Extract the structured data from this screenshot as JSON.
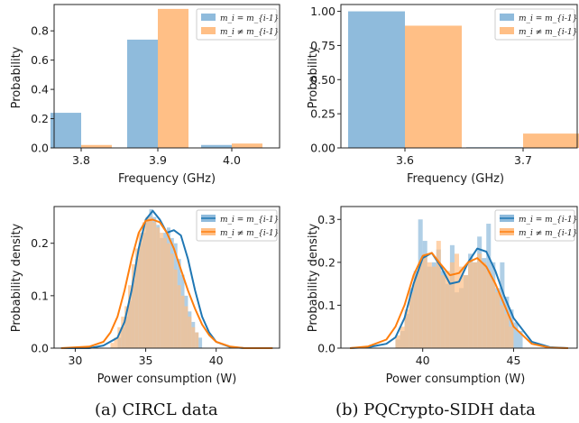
{
  "colors": {
    "blue": "#1f77b4",
    "orange": "#ff7f0e",
    "blue_fill": "#8fbbdc",
    "orange_fill": "#ffbf86",
    "axis": "#222222"
  },
  "captions": {
    "a": "(a) CIRCL data",
    "b": "(b) PQCrypto-SIDH data"
  },
  "chart_data": [
    {
      "id": "freq-circl",
      "type": "bar",
      "xlabel": "Frequency (GHz)",
      "ylabel": "Probability",
      "categories": [
        "3.8",
        "3.9",
        "4.0"
      ],
      "series": [
        {
          "name": "m_i = m_{i-1}",
          "values": [
            0.24,
            0.74,
            0.02
          ]
        },
        {
          "name": "m_i ≠ m_{i-1}",
          "values": [
            0.02,
            0.95,
            0.03
          ]
        }
      ],
      "ylim": [
        0,
        0.98
      ],
      "yticks": [
        0.0,
        0.2,
        0.4,
        0.6,
        0.8
      ],
      "ytick_labels": [
        "0.0",
        "0.2",
        "0.4",
        "0.6",
        "0.8"
      ],
      "legend": "top-right"
    },
    {
      "id": "freq-sidh",
      "type": "bar",
      "xlabel": "Frequency (GHz)",
      "ylabel": "Probability",
      "categories": [
        "3.6",
        "3.7"
      ],
      "series": [
        {
          "name": "m_i = m_{i-1}",
          "values": [
            1.0,
            0.005
          ]
        },
        {
          "name": "m_i ≠ m_{i-1}",
          "values": [
            0.895,
            0.105
          ]
        }
      ],
      "ylim": [
        0,
        1.05
      ],
      "yticks": [
        0.0,
        0.25,
        0.5,
        0.75,
        1.0
      ],
      "ytick_labels": [
        "0.00",
        "0.25",
        "0.50",
        "0.75",
        "1.00"
      ],
      "legend": "top-right"
    },
    {
      "id": "power-circl",
      "type": "area",
      "xlabel": "Power consumption (W)",
      "ylabel": "Probability density",
      "xlim": [
        28.5,
        44.5
      ],
      "ylim": [
        0,
        0.27
      ],
      "xticks": [
        30,
        35,
        40
      ],
      "yticks": [
        0.0,
        0.1,
        0.2
      ],
      "ytick_labels": [
        "0.0",
        "0.1",
        "0.2"
      ],
      "legend": "top-right",
      "series": [
        {
          "name": "m_i = m_{i-1}",
          "curve": {
            "x": [
              29,
              31,
              32,
              33,
              33.5,
              34,
              34.5,
              35,
              35.5,
              36,
              36.5,
              37,
              37.5,
              38,
              38.5,
              39,
              39.5,
              40,
              41,
              42,
              44
            ],
            "y": [
              0,
              0.0,
              0.005,
              0.02,
              0.05,
              0.11,
              0.19,
              0.245,
              0.262,
              0.245,
              0.22,
              0.225,
              0.215,
              0.17,
              0.11,
              0.06,
              0.03,
              0.012,
              0.002,
              0,
              0
            ]
          },
          "hist": {
            "x0": 33.0,
            "bin": 0.25,
            "y": [
              0.02,
              0.04,
              0.06,
              0.09,
              0.13,
              0.17,
              0.2,
              0.22,
              0.25,
              0.265,
              0.25,
              0.235,
              0.21,
              0.22,
              0.23,
              0.21,
              0.2,
              0.17,
              0.14,
              0.1,
              0.07,
              0.05,
              0.03,
              0.02
            ]
          }
        },
        {
          "name": "m_i ≠ m_{i-1}",
          "curve": {
            "x": [
              29,
              31,
              32,
              32.5,
              33,
              33.5,
              34,
              34.5,
              35,
              35.5,
              36,
              36.5,
              37,
              37.5,
              38,
              38.5,
              39,
              39.5,
              40,
              41,
              42,
              44
            ],
            "y": [
              0,
              0.003,
              0.012,
              0.03,
              0.06,
              0.11,
              0.17,
              0.22,
              0.243,
              0.245,
              0.24,
              0.22,
              0.19,
              0.15,
              0.11,
              0.075,
              0.045,
              0.025,
              0.012,
              0.003,
              0,
              0
            ]
          },
          "hist": {
            "x0": 32.5,
            "bin": 0.25,
            "y": [
              0.01,
              0.02,
              0.04,
              0.06,
              0.08,
              0.12,
              0.16,
              0.19,
              0.22,
              0.24,
              0.25,
              0.25,
              0.24,
              0.23,
              0.22,
              0.21,
              0.2,
              0.18,
              0.15,
              0.12,
              0.1,
              0.08,
              0.06,
              0.04,
              0.03
            ]
          }
        }
      ]
    },
    {
      "id": "power-sidh",
      "type": "area",
      "xlabel": "Power consumption (W)",
      "ylabel": "Probability density",
      "xlim": [
        35.5,
        48.5
      ],
      "ylim": [
        0,
        0.33
      ],
      "xticks": [
        40,
        45
      ],
      "yticks": [
        0.0,
        0.1,
        0.2,
        0.3
      ],
      "ytick_labels": [
        "0.0",
        "0.1",
        "0.2",
        "0.3"
      ],
      "legend": "top-right",
      "series": [
        {
          "name": "m_i = m_{i-1}",
          "curve": {
            "x": [
              36,
              37,
              38,
              38.5,
              39,
              39.5,
              40,
              40.5,
              41,
              41.5,
              42,
              42.5,
              43,
              43.5,
              44,
              44.5,
              45,
              46,
              47,
              48
            ],
            "y": [
              0,
              0.002,
              0.01,
              0.025,
              0.07,
              0.15,
              0.21,
              0.222,
              0.19,
              0.15,
              0.155,
              0.2,
              0.232,
              0.225,
              0.18,
              0.12,
              0.07,
              0.015,
              0.002,
              0
            ]
          },
          "hist": {
            "x0": 38.5,
            "bin": 0.25,
            "y": [
              0.02,
              0.04,
              0.08,
              0.14,
              0.18,
              0.3,
              0.25,
              0.19,
              0.2,
              0.23,
              0.18,
              0.15,
              0.24,
              0.13,
              0.14,
              0.17,
              0.22,
              0.2,
              0.26,
              0.21,
              0.29,
              0.2,
              0.14,
              0.2,
              0.12,
              0.09,
              0.06,
              0.04
            ]
          }
        },
        {
          "name": "m_i ≠ m_{i-1}",
          "curve": {
            "x": [
              36,
              37,
              38,
              38.5,
              39,
              39.5,
              40,
              40.5,
              41,
              41.5,
              42,
              42.5,
              43,
              43.5,
              44,
              44.5,
              45,
              46,
              47,
              48
            ],
            "y": [
              0,
              0.004,
              0.02,
              0.05,
              0.1,
              0.17,
              0.215,
              0.222,
              0.195,
              0.17,
              0.175,
              0.2,
              0.21,
              0.19,
              0.15,
              0.1,
              0.05,
              0.01,
              0.001,
              0
            ]
          },
          "hist": {
            "x0": 38.5,
            "bin": 0.25,
            "y": [
              0.03,
              0.05,
              0.09,
              0.13,
              0.17,
              0.2,
              0.22,
              0.2,
              0.19,
              0.25,
              0.17,
              0.18,
              0.2,
              0.22,
              0.19,
              0.17,
              0.2,
              0.2,
              0.22,
              0.2,
              0.18,
              0.16,
              0.13,
              0.1,
              0.08,
              0.05
            ]
          }
        }
      ]
    }
  ]
}
